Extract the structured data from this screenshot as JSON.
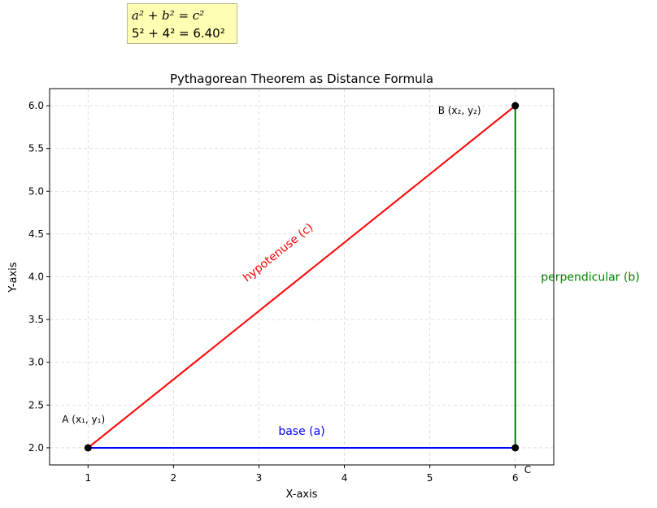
{
  "formula_box": {
    "line1": "a² + b² = c²",
    "line2": "5² + 4² = 6.40²"
  },
  "chart_data": {
    "type": "line",
    "title": "Pythagorean Theorem as Distance Formula",
    "xlabel": "X-axis",
    "ylabel": "Y-axis",
    "xlim": [
      0.55,
      6.45
    ],
    "ylim": [
      1.8,
      6.2
    ],
    "xticks": [
      1,
      2,
      3,
      4,
      5,
      6
    ],
    "xtick_labels": [
      "1",
      "2",
      "3",
      "4",
      "5",
      "6"
    ],
    "yticks": [
      2.0,
      2.5,
      3.0,
      3.5,
      4.0,
      4.5,
      5.0,
      5.5,
      6.0
    ],
    "ytick_labels": [
      "2.0",
      "2.5",
      "3.0",
      "3.5",
      "4.0",
      "4.5",
      "5.0",
      "5.5",
      "6.0"
    ],
    "grid": true,
    "series": [
      {
        "x": [
          1,
          6
        ],
        "y": [
          2,
          2
        ],
        "color": "#0000ff"
      },
      {
        "x": [
          6,
          6
        ],
        "y": [
          2,
          6
        ],
        "color": "#008000"
      },
      {
        "x": [
          1,
          6
        ],
        "y": [
          2,
          6
        ],
        "color": "#ff0000"
      }
    ],
    "points": [
      {
        "label": "A (x₁, y₁)",
        "x": 1,
        "y": 2
      },
      {
        "label": "B (x₂, y₂)",
        "x": 6,
        "y": 6
      },
      {
        "label": "C",
        "x": 6,
        "y": 2
      }
    ],
    "annotations": [
      {
        "text": "base (a)",
        "x": 3.5,
        "y": 2.2,
        "color": "#0000ff"
      },
      {
        "text": "perpendicular (b)",
        "x": 6.3,
        "y": 4.0,
        "color": "#008000"
      },
      {
        "text": "hypotenuse (c)",
        "x": 3.25,
        "y": 4.25,
        "color": "#ff0000",
        "rotation": 38.7
      }
    ]
  }
}
